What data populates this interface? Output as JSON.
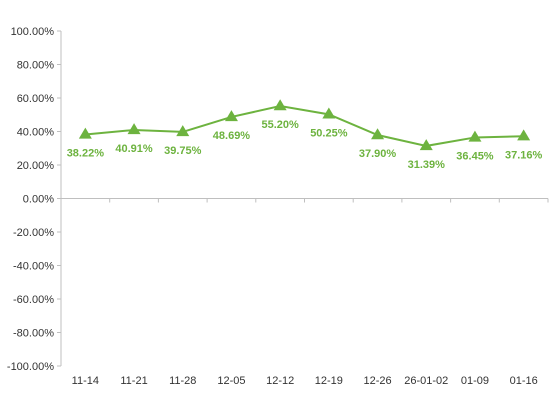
{
  "chart_data": {
    "type": "line",
    "categories": [
      "11-14",
      "11-21",
      "11-28",
      "12-05",
      "12-12",
      "12-19",
      "12-26",
      "26-01-02",
      "01-09",
      "01-16"
    ],
    "series": [
      {
        "values": [
          38.22,
          40.91,
          39.75,
          48.69,
          55.2,
          50.25,
          37.9,
          31.39,
          36.45,
          37.16
        ],
        "labels": [
          "38.22%",
          "40.91%",
          "39.75%",
          "48.69%",
          "55.20%",
          "50.25%",
          "37.90%",
          "31.39%",
          "36.45%",
          "37.16%"
        ],
        "color": "#6DB33F",
        "marker": "triangle"
      }
    ],
    "yticks": [
      "100.00%",
      "80.00%",
      "60.00%",
      "40.00%",
      "20.00%",
      "0.00%",
      "-20.00%",
      "-40.00%",
      "-60.00%",
      "-80.00%",
      "-100.00%"
    ],
    "ytick_values": [
      100,
      80,
      60,
      40,
      20,
      0,
      -20,
      -40,
      -60,
      -80,
      -100
    ],
    "ylim": [
      -100,
      100
    ],
    "title": "",
    "xlabel": "",
    "ylabel": "",
    "grid": false,
    "legend": "none",
    "axis_color": "#BFBFBF"
  }
}
